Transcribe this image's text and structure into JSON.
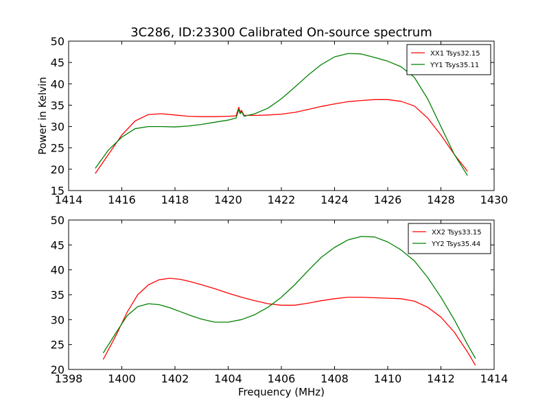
{
  "figure": {
    "title": "3C286, ID:23300 Calibrated On-source spectrum",
    "xlabel": "Frequency (MHz)",
    "ylabel": "Power in Kelvin"
  },
  "colors": {
    "red": "#ff0000",
    "green": "#008000",
    "axes": "#000000"
  },
  "chart_data": [
    {
      "type": "line",
      "title": "3C286, ID:23300 Calibrated On-source spectrum",
      "xlabel": "",
      "ylabel": "Power in Kelvin",
      "xlim": [
        1414,
        1430
      ],
      "ylim": [
        15,
        50
      ],
      "xticks": [
        1414,
        1416,
        1418,
        1420,
        1422,
        1424,
        1426,
        1428,
        1430
      ],
      "yticks": [
        15,
        20,
        25,
        30,
        35,
        40,
        45,
        50
      ],
      "grid": false,
      "legend_position": "top-right",
      "series": [
        {
          "name": "XX1 Tsys32.15",
          "color": "#ff0000",
          "points": [
            [
              1415.0,
              19.0
            ],
            [
              1415.5,
              23.5
            ],
            [
              1416.0,
              28.0
            ],
            [
              1416.5,
              31.3
            ],
            [
              1417.0,
              32.8
            ],
            [
              1417.5,
              33.0
            ],
            [
              1418.0,
              32.7
            ],
            [
              1418.5,
              32.4
            ],
            [
              1419.0,
              32.3
            ],
            [
              1419.5,
              32.3
            ],
            [
              1420.0,
              32.4
            ],
            [
              1420.3,
              32.5
            ],
            [
              1420.4,
              34.5
            ],
            [
              1420.45,
              33.3
            ],
            [
              1420.5,
              33.8
            ],
            [
              1420.6,
              32.6
            ],
            [
              1421.0,
              32.6
            ],
            [
              1421.5,
              32.7
            ],
            [
              1422.0,
              32.9
            ],
            [
              1422.5,
              33.3
            ],
            [
              1423.0,
              34.0
            ],
            [
              1423.5,
              34.7
            ],
            [
              1424.0,
              35.3
            ],
            [
              1424.5,
              35.8
            ],
            [
              1425.0,
              36.1
            ],
            [
              1425.5,
              36.3
            ],
            [
              1426.0,
              36.3
            ],
            [
              1426.5,
              35.9
            ],
            [
              1427.0,
              34.8
            ],
            [
              1427.5,
              32.0
            ],
            [
              1428.0,
              28.0
            ],
            [
              1428.5,
              23.5
            ],
            [
              1429.0,
              19.5
            ]
          ]
        },
        {
          "name": "YY1 Tsys35.11",
          "color": "#008000",
          "points": [
            [
              1415.0,
              20.2
            ],
            [
              1415.5,
              24.5
            ],
            [
              1416.0,
              27.5
            ],
            [
              1416.5,
              29.5
            ],
            [
              1417.0,
              30.0
            ],
            [
              1417.5,
              30.0
            ],
            [
              1418.0,
              29.9
            ],
            [
              1418.5,
              30.1
            ],
            [
              1419.0,
              30.5
            ],
            [
              1419.5,
              31.0
            ],
            [
              1420.0,
              31.5
            ],
            [
              1420.3,
              32.0
            ],
            [
              1420.4,
              34.0
            ],
            [
              1420.45,
              33.0
            ],
            [
              1420.5,
              33.5
            ],
            [
              1420.6,
              32.4
            ],
            [
              1421.0,
              33.0
            ],
            [
              1421.5,
              34.3
            ],
            [
              1422.0,
              36.5
            ],
            [
              1422.5,
              39.2
            ],
            [
              1423.0,
              42.0
            ],
            [
              1423.5,
              44.5
            ],
            [
              1424.0,
              46.3
            ],
            [
              1424.5,
              47.1
            ],
            [
              1425.0,
              47.0
            ],
            [
              1425.5,
              46.2
            ],
            [
              1426.0,
              45.3
            ],
            [
              1426.5,
              44.0
            ],
            [
              1427.0,
              41.5
            ],
            [
              1427.5,
              36.5
            ],
            [
              1428.0,
              30.0
            ],
            [
              1428.5,
              23.5
            ],
            [
              1429.0,
              18.5
            ]
          ]
        }
      ]
    },
    {
      "type": "line",
      "title": "",
      "xlabel": "Frequency (MHz)",
      "ylabel": "",
      "xlim": [
        1398,
        1414
      ],
      "ylim": [
        20,
        50
      ],
      "xticks": [
        1398,
        1400,
        1402,
        1404,
        1406,
        1408,
        1410,
        1412,
        1414
      ],
      "yticks": [
        20,
        25,
        30,
        35,
        40,
        45,
        50
      ],
      "grid": false,
      "legend_position": "top-right",
      "series": [
        {
          "name": "XX2 Tsys33.15",
          "color": "#ff0000",
          "points": [
            [
              1399.3,
              22.0
            ],
            [
              1399.8,
              27.0
            ],
            [
              1400.2,
              31.5
            ],
            [
              1400.6,
              35.0
            ],
            [
              1401.0,
              37.0
            ],
            [
              1401.4,
              38.0
            ],
            [
              1401.8,
              38.3
            ],
            [
              1402.2,
              38.1
            ],
            [
              1402.6,
              37.6
            ],
            [
              1403.0,
              37.0
            ],
            [
              1403.5,
              36.2
            ],
            [
              1404.0,
              35.3
            ],
            [
              1404.5,
              34.5
            ],
            [
              1405.0,
              33.8
            ],
            [
              1405.5,
              33.2
            ],
            [
              1406.0,
              32.9
            ],
            [
              1406.5,
              32.9
            ],
            [
              1407.0,
              33.3
            ],
            [
              1407.5,
              33.8
            ],
            [
              1408.0,
              34.2
            ],
            [
              1408.5,
              34.5
            ],
            [
              1409.0,
              34.5
            ],
            [
              1409.5,
              34.4
            ],
            [
              1410.0,
              34.3
            ],
            [
              1410.5,
              34.2
            ],
            [
              1411.0,
              33.7
            ],
            [
              1411.5,
              32.5
            ],
            [
              1412.0,
              30.5
            ],
            [
              1412.5,
              27.5
            ],
            [
              1413.0,
              23.5
            ],
            [
              1413.3,
              20.8
            ]
          ]
        },
        {
          "name": "YY2 Tsys35.44",
          "color": "#008000",
          "points": [
            [
              1399.3,
              23.3
            ],
            [
              1399.8,
              27.5
            ],
            [
              1400.2,
              30.8
            ],
            [
              1400.6,
              32.6
            ],
            [
              1401.0,
              33.2
            ],
            [
              1401.4,
              33.0
            ],
            [
              1401.8,
              32.4
            ],
            [
              1402.2,
              31.6
            ],
            [
              1402.6,
              30.8
            ],
            [
              1403.0,
              30.1
            ],
            [
              1403.5,
              29.5
            ],
            [
              1404.0,
              29.5
            ],
            [
              1404.5,
              30.0
            ],
            [
              1405.0,
              31.0
            ],
            [
              1405.5,
              32.5
            ],
            [
              1406.0,
              34.5
            ],
            [
              1406.5,
              37.0
            ],
            [
              1407.0,
              39.8
            ],
            [
              1407.5,
              42.5
            ],
            [
              1408.0,
              44.5
            ],
            [
              1408.5,
              46.0
            ],
            [
              1409.0,
              46.7
            ],
            [
              1409.5,
              46.6
            ],
            [
              1410.0,
              45.6
            ],
            [
              1410.5,
              44.0
            ],
            [
              1411.0,
              41.8
            ],
            [
              1411.5,
              38.5
            ],
            [
              1412.0,
              34.5
            ],
            [
              1412.5,
              30.0
            ],
            [
              1413.0,
              25.0
            ],
            [
              1413.3,
              22.2
            ]
          ]
        }
      ]
    }
  ]
}
